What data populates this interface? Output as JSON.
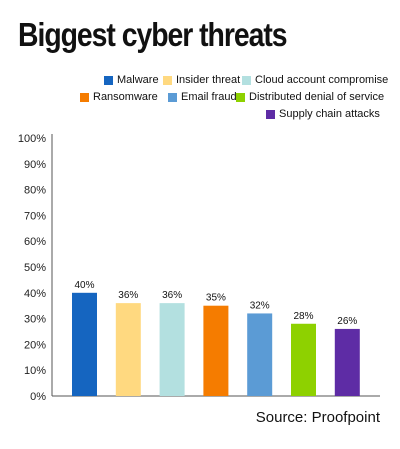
{
  "chart_data": {
    "type": "bar",
    "title": "Biggest cyber threats",
    "categories": [
      "Malware",
      "Insider threat",
      "Cloud account compromise",
      "Ransomware",
      "Email fraud",
      "Distributed denial of service",
      "Supply chain attacks"
    ],
    "values": [
      40,
      36,
      36,
      35,
      32,
      28,
      26
    ],
    "data_labels": [
      "40%",
      "36%",
      "36%",
      "35%",
      "32%",
      "28%",
      "26%"
    ],
    "colors": [
      "#1565c0",
      "#ffd980",
      "#b3e0e0",
      "#f57c00",
      "#5b9bd5",
      "#8ed100",
      "#5e2ca5"
    ],
    "ylim": [
      0,
      100
    ],
    "yticks": [
      0,
      10,
      20,
      30,
      40,
      50,
      60,
      70,
      80,
      90,
      100
    ],
    "ytick_labels": [
      "0%",
      "10%",
      "20%",
      "30%",
      "40%",
      "50%",
      "60%",
      "70%",
      "80%",
      "90%",
      "100%"
    ],
    "xlabel": "",
    "ylabel": "",
    "grid": false,
    "legend_position": "top-right"
  },
  "source": "Source: Proofpoint"
}
